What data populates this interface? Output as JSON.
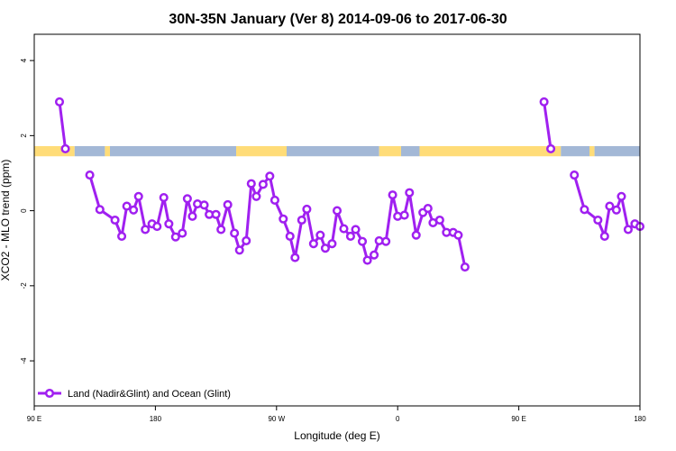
{
  "chart_data": {
    "type": "line",
    "title": "30N-35N January (Ver 8)   2014-09-06 to 2017-06-30",
    "xlabel": "Longitude (deg E)",
    "ylabel": "XCO2 - MLO trend (ppm)",
    "xlim": [
      90,
      450
    ],
    "ylim": [
      -5.2,
      4.7
    ],
    "x_ticks": [
      {
        "value": 90,
        "label": "90 E"
      },
      {
        "value": 162,
        "label": "180"
      },
      {
        "value": 234,
        "label": "90 W"
      },
      {
        "value": 306,
        "label": "0"
      },
      {
        "value": 378,
        "label": "90 E"
      },
      {
        "value": 450,
        "label": "180"
      }
    ],
    "y_ticks": [
      {
        "value": 4,
        "label": "4"
      },
      {
        "value": 2,
        "label": "2"
      },
      {
        "value": 0,
        "label": "0"
      },
      {
        "value": -2,
        "label": "-2"
      },
      {
        "value": -4,
        "label": "-4"
      }
    ],
    "series": [
      {
        "name": "Land (Nadir&Glint) and Ocean (Glint)",
        "color": "#a020f0",
        "segments": [
          [
            [
              105,
              2.9
            ],
            [
              108.5,
              1.65
            ]
          ],
          [
            [
              123,
              0.95
            ],
            [
              129,
              0.03
            ],
            [
              138,
              -0.25
            ],
            [
              142,
              -0.68
            ],
            [
              145,
              0.12
            ],
            [
              149,
              0.02
            ],
            [
              152,
              0.38
            ],
            [
              156,
              -0.5
            ],
            [
              160,
              -0.35
            ],
            [
              163,
              -0.42
            ],
            [
              167,
              0.35
            ],
            [
              170,
              -0.35
            ],
            [
              174,
              -0.7
            ],
            [
              178,
              -0.6
            ],
            [
              181,
              0.32
            ],
            [
              184,
              -0.15
            ],
            [
              187,
              0.18
            ],
            [
              191,
              0.15
            ],
            [
              194,
              -0.1
            ],
            [
              198,
              -0.1
            ],
            [
              201,
              -0.5
            ],
            [
              205,
              0.16
            ],
            [
              209,
              -0.6
            ],
            [
              212,
              -1.05
            ],
            [
              216,
              -0.8
            ],
            [
              219,
              0.72
            ],
            [
              222,
              0.38
            ],
            [
              226,
              0.7
            ],
            [
              230,
              0.92
            ],
            [
              233,
              0.28
            ],
            [
              238,
              -0.22
            ],
            [
              242,
              -0.68
            ],
            [
              245,
              -1.25
            ],
            [
              249,
              -0.25
            ],
            [
              252,
              0.04
            ],
            [
              256,
              -0.88
            ],
            [
              260,
              -0.65
            ],
            [
              263,
              -1.0
            ],
            [
              267,
              -0.88
            ],
            [
              270,
              0.0
            ],
            [
              274,
              -0.48
            ],
            [
              278,
              -0.68
            ],
            [
              281,
              -0.5
            ],
            [
              285,
              -0.82
            ],
            [
              288,
              -1.32
            ],
            [
              292,
              -1.18
            ],
            [
              295,
              -0.8
            ],
            [
              299,
              -0.82
            ],
            [
              303,
              0.42
            ],
            [
              306,
              -0.15
            ],
            [
              310,
              -0.12
            ],
            [
              313,
              0.48
            ],
            [
              317,
              -0.65
            ],
            [
              321,
              -0.05
            ],
            [
              324,
              0.06
            ],
            [
              327,
              -0.32
            ],
            [
              331,
              -0.25
            ],
            [
              335,
              -0.58
            ],
            [
              339,
              -0.58
            ],
            [
              342,
              -0.65
            ],
            [
              346,
              -1.5
            ]
          ],
          [
            [
              393,
              2.9
            ],
            [
              397,
              1.65
            ]
          ],
          [
            [
              411,
              0.95
            ],
            [
              417,
              0.03
            ],
            [
              425,
              -0.25
            ],
            [
              429,
              -0.68
            ],
            [
              432,
              0.12
            ],
            [
              436,
              0.02
            ],
            [
              439,
              0.38
            ],
            [
              443,
              -0.5
            ],
            [
              447,
              -0.35
            ],
            [
              450,
              -0.42
            ]
          ]
        ]
      }
    ],
    "band": {
      "y_range": [
        1.45,
        1.72
      ],
      "colors": {
        "ocean": "#a3b8d6",
        "land": "#ffdc78"
      },
      "pattern": [
        {
          "from": 90,
          "to": 114,
          "type": "land"
        },
        {
          "from": 114,
          "to": 132,
          "type": "ocean"
        },
        {
          "from": 132,
          "to": 135,
          "type": "land"
        },
        {
          "from": 135,
          "to": 210,
          "type": "ocean"
        },
        {
          "from": 210,
          "to": 240,
          "type": "land"
        },
        {
          "from": 240,
          "to": 295,
          "type": "ocean"
        },
        {
          "from": 295,
          "to": 308,
          "type": "land"
        },
        {
          "from": 308,
          "to": 319,
          "type": "ocean"
        },
        {
          "from": 319,
          "to": 403,
          "type": "land"
        },
        {
          "from": 403,
          "to": 420,
          "type": "ocean"
        },
        {
          "from": 420,
          "to": 423,
          "type": "land"
        },
        {
          "from": 423,
          "to": 450,
          "type": "ocean"
        }
      ]
    },
    "legend": {
      "position": "bottom-left"
    },
    "grid": false
  }
}
